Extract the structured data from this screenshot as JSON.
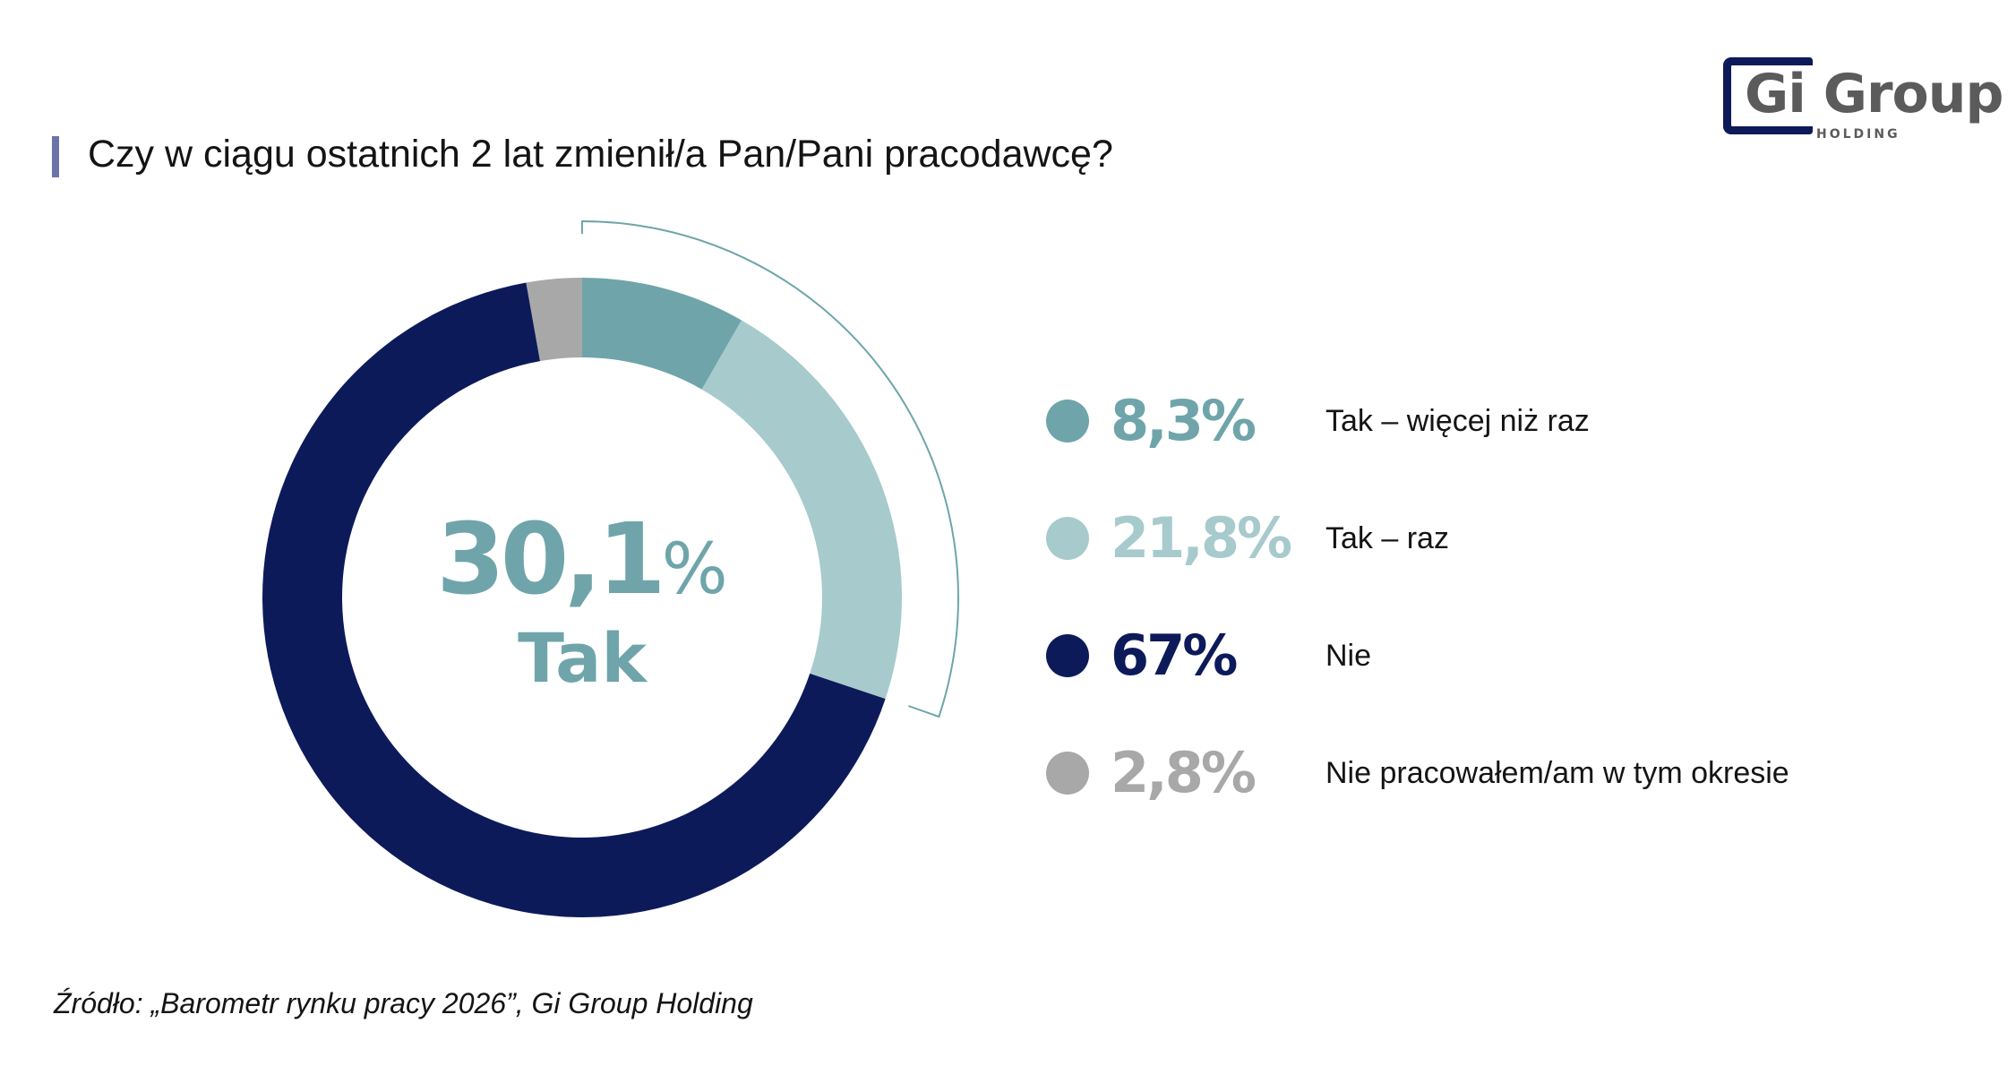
{
  "title": "Czy w ciągu ostatnich 2 lat zmienił/a Pan/Pani pracodawcę?",
  "logo": {
    "text": "Gi Group",
    "subtitle": "HOLDING",
    "brand_color": "#0d1a5a",
    "text_color": "#5b5b5b"
  },
  "center": {
    "value": "30,1",
    "unit": "%",
    "label": "Tak"
  },
  "legend": [
    {
      "value": "8,3",
      "unit": "%",
      "label": "Tak – więcej niż raz",
      "color": "#6fa5aa"
    },
    {
      "value": "21,8",
      "unit": "%",
      "label": "Tak – raz",
      "color": "#a7cacd"
    },
    {
      "value": "67",
      "unit": "%",
      "label": "Nie",
      "color": "#0d1a5a"
    },
    {
      "value": "2,8",
      "unit": "%",
      "label": "Nie pracowałem/am w tym okresie",
      "color": "#a8a8a8"
    }
  ],
  "source": "Źródło: „Barometr rynku pracy 2026”, Gi Group Holding",
  "chart_data": {
    "type": "pie",
    "title": "Czy w ciągu ostatnich 2 lat zmienił/a Pan/Pani pracodawcę?",
    "categories": [
      "Tak – więcej niż raz",
      "Tak – raz",
      "Nie",
      "Nie pracowałem/am w tym okresie"
    ],
    "values": [
      8.3,
      21.8,
      67,
      2.8
    ],
    "colors": [
      "#6fa5aa",
      "#a7cacd",
      "#0d1a5a",
      "#a8a8a8"
    ],
    "donut": true,
    "bracket_group": [
      "Tak – więcej niż raz",
      "Tak – raz"
    ],
    "bracket_color": "#6fa5aa",
    "center_annotation": "30,1% Tak",
    "legend_position": "right"
  }
}
